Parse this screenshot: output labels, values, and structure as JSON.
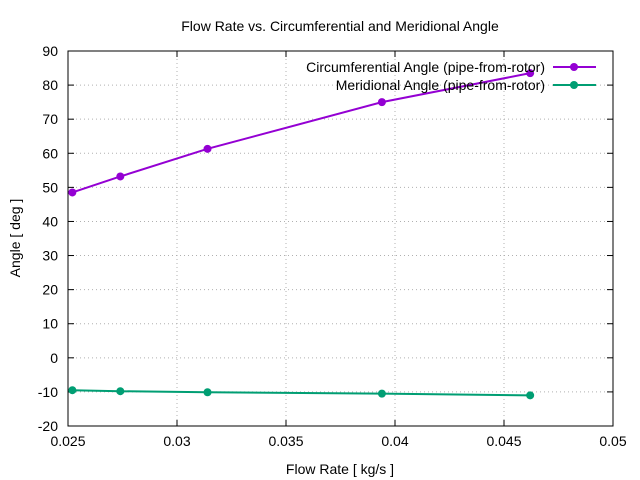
{
  "chart_data": {
    "type": "line",
    "title": "Flow Rate vs. Circumferential and Meridional Angle",
    "xlabel": "Flow Rate [ kg/s ]",
    "ylabel": "Angle [ deg ]",
    "xlim": [
      0.025,
      0.05
    ],
    "ylim": [
      -20,
      90
    ],
    "xticks": [
      "0.025",
      "0.03",
      "0.035",
      "0.04",
      "0.045",
      "0.05"
    ],
    "yticks": [
      "-20",
      "-10",
      "0",
      "10",
      "20",
      "30",
      "40",
      "50",
      "60",
      "70",
      "80",
      "90"
    ],
    "grid": true,
    "legend_position": "top-right",
    "x": [
      0.0252,
      0.0274,
      0.0314,
      0.0394,
      0.0462
    ],
    "series": [
      {
        "name": "Circumferential Angle (pipe-from-rotor)",
        "color": "#9400d3",
        "values": [
          48.5,
          53.2,
          61.3,
          75.0,
          83.5
        ]
      },
      {
        "name": "Meridional Angle (pipe-from-rotor)",
        "color": "#009e73",
        "values": [
          -9.5,
          -9.8,
          -10.1,
          -10.5,
          -11.0
        ]
      }
    ]
  }
}
